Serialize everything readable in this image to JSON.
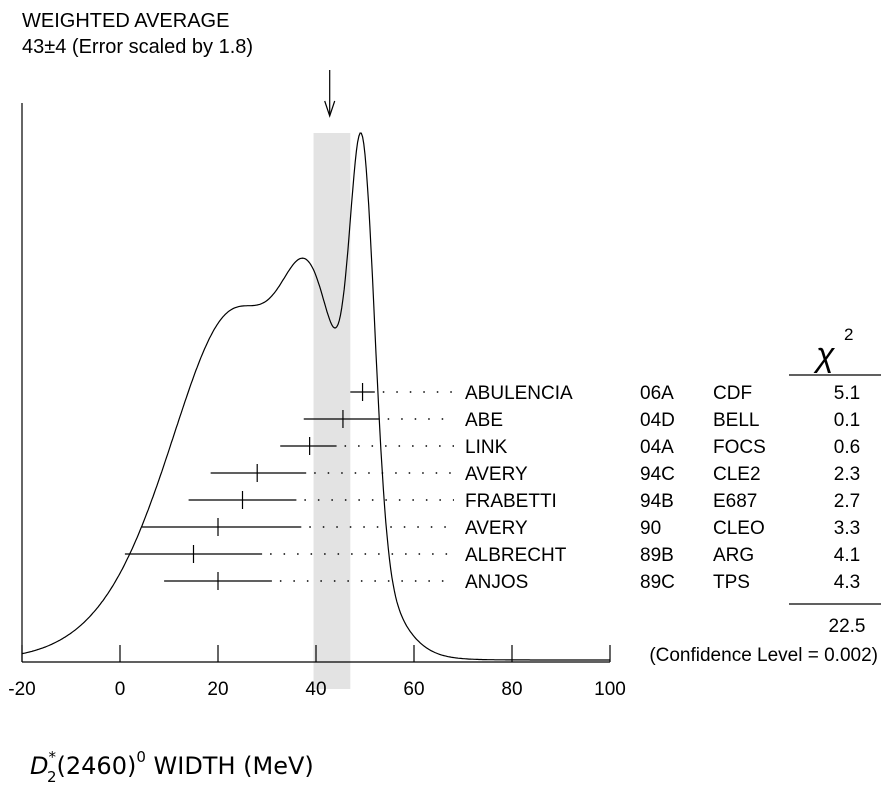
{
  "chart_data": {
    "type": "ideogram",
    "title": "WEIGHTED AVERAGE",
    "subtitle": "43±4 (Error scaled by 1.8)",
    "x_axis": {
      "range": [
        -20,
        100
      ],
      "ticks": [
        -20,
        0,
        20,
        40,
        60,
        80,
        100
      ],
      "tick_labels": [
        "-20",
        "0",
        "20",
        "40",
        "60",
        "80",
        "100"
      ],
      "label": {
        "main": "D",
        "sub": "2",
        "sup": "*",
        "rest": "(2460)",
        "sup2": "0",
        "tail": " WIDTH (MeV)"
      }
    },
    "average": {
      "value": 43,
      "error": 4,
      "band": [
        39.5,
        47
      ]
    },
    "chi2_header": "χ",
    "chi2_header_sup": "2",
    "measurements": [
      {
        "author": "ABULENCIA",
        "year": "06A",
        "experiment": "CDF",
        "chi2": "5.1",
        "value": 49.5,
        "err_low": 2.5,
        "err_high": 2.5
      },
      {
        "author": "ABE",
        "year": "04D",
        "experiment": "BELL",
        "chi2": "0.1",
        "value": 45.5,
        "err_low": 8,
        "err_high": 7.5
      },
      {
        "author": "LINK",
        "year": "04A",
        "experiment": "FOCS",
        "chi2": "0.6",
        "value": 38.7,
        "err_low": 6,
        "err_high": 5.5
      },
      {
        "author": "AVERY",
        "year": "94C",
        "experiment": "CLE2",
        "chi2": "2.3",
        "value": 28,
        "err_low": 9.5,
        "err_high": 10
      },
      {
        "author": "FRABETTI",
        "year": "94B",
        "experiment": "E687",
        "chi2": "2.7",
        "value": 25,
        "err_low": 11,
        "err_high": 11
      },
      {
        "author": "AVERY",
        "year": "90",
        "experiment": "CLEO",
        "chi2": "3.3",
        "value": 20,
        "err_low": 15.5,
        "err_high": 17
      },
      {
        "author": "ALBRECHT",
        "year": "89B",
        "experiment": "ARG",
        "chi2": "4.1",
        "value": 15,
        "err_low": 14,
        "err_high": 14
      },
      {
        "author": "ANJOS",
        "year": "89C",
        "experiment": "TPS",
        "chi2": "4.3",
        "value": 20,
        "err_low": 11,
        "err_high": 11
      }
    ],
    "chi2_total": "22.5",
    "confidence_level": "(Confidence Level = 0.002)",
    "grid": false
  }
}
